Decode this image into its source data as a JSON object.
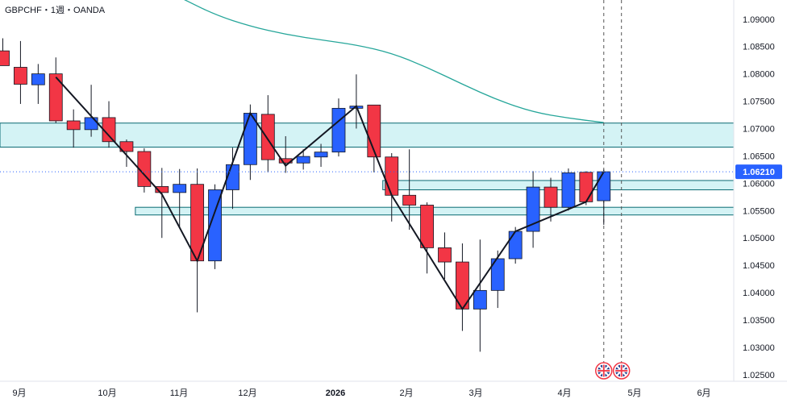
{
  "header": {
    "symbol_label": "GBPCHF・1週・OANDA"
  },
  "chart_data": {
    "type": "candlestick",
    "title": "GBPCHF・1週・OANDA",
    "ylim": [
      1.0238,
      1.0935
    ],
    "y_ticks": [
      "1.09000",
      "1.08500",
      "1.08000",
      "1.07500",
      "1.07000",
      "1.06500",
      "1.06000",
      "1.05500",
      "1.05000",
      "1.04500",
      "1.04000",
      "1.03500",
      "1.03000",
      "1.02500"
    ],
    "x_ticks": [
      "9月",
      "10月",
      "11月",
      "12月",
      "2026",
      "2月",
      "3月",
      "4月",
      "5月",
      "6月"
    ],
    "last_price_label": "1.06210",
    "last_price": 1.0621,
    "colors": {
      "up": "#2962ff",
      "down": "#f23645",
      "moving_average": "#26a69a",
      "zone_fill": "#d4f3f5",
      "zone_border": "#0a6a73",
      "price_badge": "#2962ff"
    },
    "candles": [
      {
        "open": 1.0842,
        "high": 1.0865,
        "low": 1.0815,
        "close": 1.0815
      },
      {
        "open": 1.0812,
        "high": 1.086,
        "low": 1.0745,
        "close": 1.0781
      },
      {
        "open": 1.078,
        "high": 1.0818,
        "low": 1.0745,
        "close": 1.08
      },
      {
        "open": 1.08,
        "high": 1.083,
        "low": 1.071,
        "close": 1.0714
      },
      {
        "open": 1.0714,
        "high": 1.0735,
        "low": 1.0665,
        "close": 1.0698
      },
      {
        "open": 1.0698,
        "high": 1.078,
        "low": 1.0685,
        "close": 1.072
      },
      {
        "open": 1.072,
        "high": 1.075,
        "low": 1.0665,
        "close": 1.0676
      },
      {
        "open": 1.0676,
        "high": 1.068,
        "low": 1.063,
        "close": 1.0658
      },
      {
        "open": 1.0658,
        "high": 1.0664,
        "low": 1.0583,
        "close": 1.0594
      },
      {
        "open": 1.0594,
        "high": 1.0628,
        "low": 1.05,
        "close": 1.0583
      },
      {
        "open": 1.0583,
        "high": 1.0626,
        "low": 1.052,
        "close": 1.0598
      },
      {
        "open": 1.0598,
        "high": 1.0627,
        "low": 1.0364,
        "close": 1.0458
      },
      {
        "open": 1.0458,
        "high": 1.0598,
        "low": 1.0443,
        "close": 1.0588
      },
      {
        "open": 1.0588,
        "high": 1.0665,
        "low": 1.0553,
        "close": 1.0634
      },
      {
        "open": 1.0634,
        "high": 1.0744,
        "low": 1.0606,
        "close": 1.0728
      },
      {
        "open": 1.0726,
        "high": 1.0761,
        "low": 1.062,
        "close": 1.0643
      },
      {
        "open": 1.0645,
        "high": 1.0686,
        "low": 1.0619,
        "close": 1.0637
      },
      {
        "open": 1.0637,
        "high": 1.0662,
        "low": 1.0625,
        "close": 1.0649
      },
      {
        "open": 1.0648,
        "high": 1.0672,
        "low": 1.063,
        "close": 1.0657
      },
      {
        "open": 1.0657,
        "high": 1.0755,
        "low": 1.0649,
        "close": 1.0737
      },
      {
        "open": 1.0737,
        "high": 1.0799,
        "low": 1.07,
        "close": 1.0741
      },
      {
        "open": 1.0743,
        "high": 1.0743,
        "low": 1.062,
        "close": 1.0648
      },
      {
        "open": 1.0648,
        "high": 1.0655,
        "low": 1.053,
        "close": 1.0578
      },
      {
        "open": 1.0578,
        "high": 1.0662,
        "low": 1.0515,
        "close": 1.056
      },
      {
        "open": 1.056,
        "high": 1.0565,
        "low": 1.0435,
        "close": 1.0482
      },
      {
        "open": 1.0482,
        "high": 1.051,
        "low": 1.0425,
        "close": 1.0456
      },
      {
        "open": 1.0456,
        "high": 1.049,
        "low": 1.033,
        "close": 1.037
      },
      {
        "open": 1.037,
        "high": 1.0497,
        "low": 1.0292,
        "close": 1.0404
      },
      {
        "open": 1.0404,
        "high": 1.0477,
        "low": 1.0372,
        "close": 1.0462
      },
      {
        "open": 1.0462,
        "high": 1.052,
        "low": 1.0453,
        "close": 1.0512
      },
      {
        "open": 1.0512,
        "high": 1.0622,
        "low": 1.0482,
        "close": 1.0593
      },
      {
        "open": 1.0593,
        "high": 1.061,
        "low": 1.053,
        "close": 1.0556
      },
      {
        "open": 1.0556,
        "high": 1.0627,
        "low": 1.055,
        "close": 1.0619
      },
      {
        "open": 1.062,
        "high": 1.0622,
        "low": 1.056,
        "close": 1.0566
      },
      {
        "open": 1.0568,
        "high": 1.0625,
        "low": 1.0524,
        "close": 1.0621
      }
    ],
    "zigzag": [
      {
        "i": 3,
        "price": 1.0794
      },
      {
        "i": 9,
        "price": 1.058
      },
      {
        "i": 11,
        "price": 1.0458
      },
      {
        "i": 14,
        "price": 1.0728
      },
      {
        "i": 16,
        "price": 1.0632
      },
      {
        "i": 20,
        "price": 1.0741
      },
      {
        "i": 22,
        "price": 1.0578
      },
      {
        "i": 26,
        "price": 1.037
      },
      {
        "i": 29,
        "price": 1.0512
      },
      {
        "i": 33,
        "price": 1.0566
      },
      {
        "i": 34,
        "price": 1.0621
      }
    ],
    "moving_average": [
      {
        "i": 10,
        "price": 1.094
      },
      {
        "i": 12,
        "price": 1.0908
      },
      {
        "i": 14,
        "price": 1.0887
      },
      {
        "i": 16,
        "price": 1.0872
      },
      {
        "i": 18,
        "price": 1.0862
      },
      {
        "i": 20,
        "price": 1.0853
      },
      {
        "i": 22,
        "price": 1.0838
      },
      {
        "i": 24,
        "price": 1.0812
      },
      {
        "i": 26,
        "price": 1.0781
      },
      {
        "i": 28,
        "price": 1.0752
      },
      {
        "i": 30,
        "price": 1.073
      },
      {
        "i": 32,
        "price": 1.0719
      },
      {
        "i": 34,
        "price": 1.0711
      }
    ],
    "zones": [
      {
        "low": 1.0666,
        "high": 1.071,
        "from_i": 0
      },
      {
        "low": 1.0588,
        "high": 1.0605,
        "from_i": 22
      },
      {
        "low": 1.0542,
        "high": 1.0556,
        "from_i": 8
      }
    ],
    "vertical_marker_indices": [
      34,
      35
    ],
    "event_icons": [
      "uk-flag-icon",
      "uk-flag-icon"
    ],
    "grid": false
  }
}
